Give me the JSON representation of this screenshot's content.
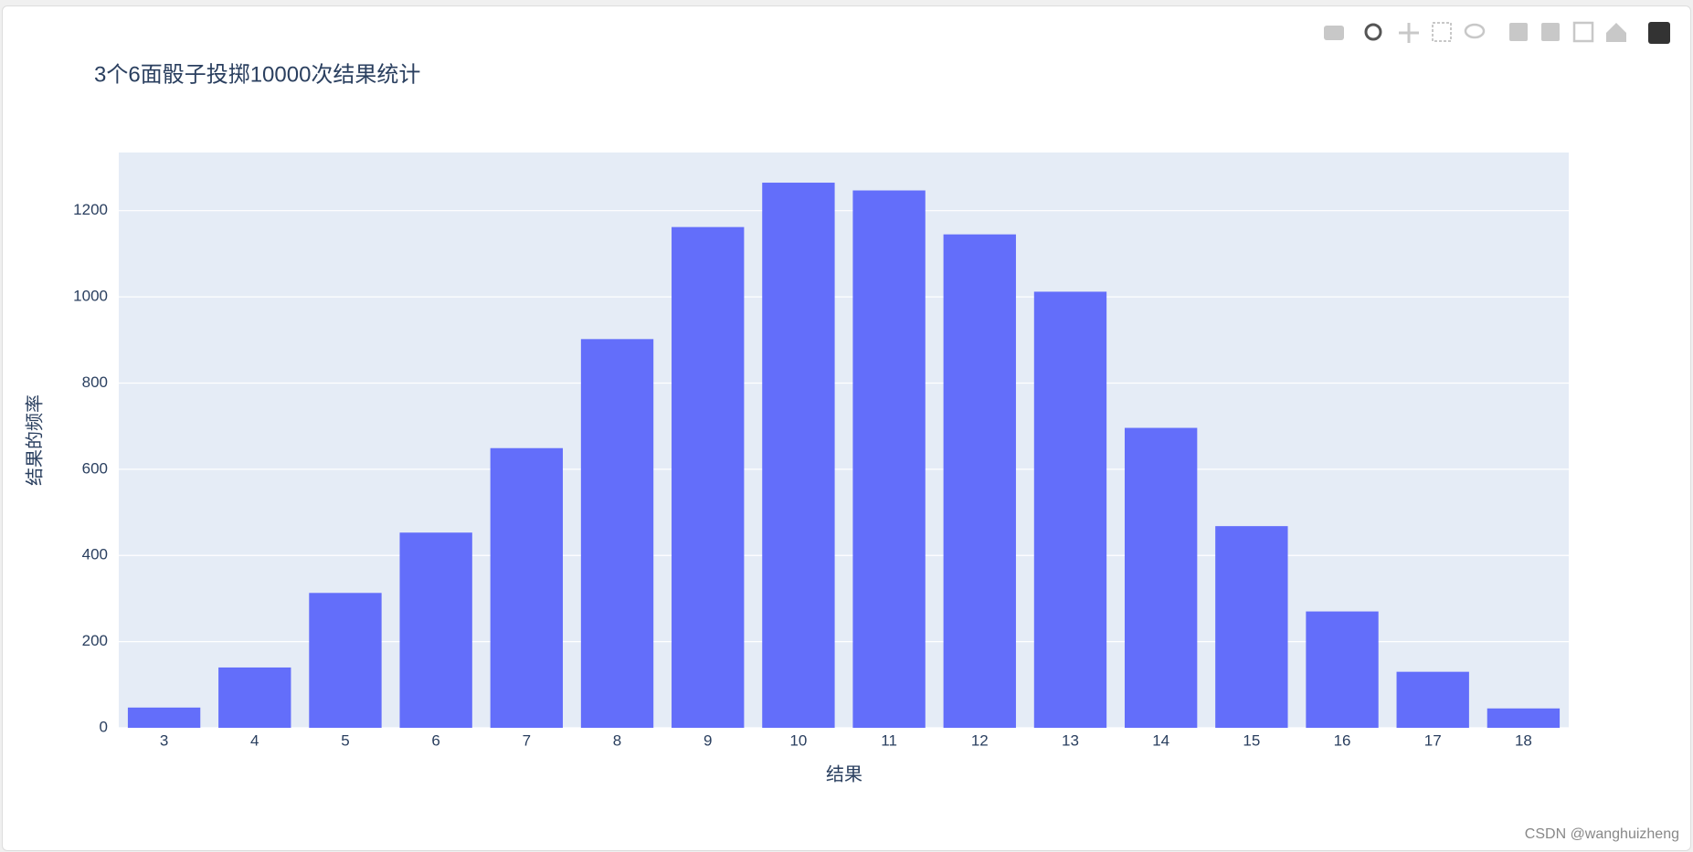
{
  "chart_data": {
    "type": "bar",
    "title": "3个6面骰子投掷10000次结果统计",
    "x_label": "结果",
    "y_label": "结果的频率",
    "categories": [
      "3",
      "4",
      "5",
      "6",
      "7",
      "8",
      "9",
      "10",
      "11",
      "12",
      "13",
      "14",
      "15",
      "16",
      "17",
      "18"
    ],
    "values": [
      47,
      140,
      313,
      453,
      649,
      902,
      1162,
      1265,
      1247,
      1145,
      1012,
      696,
      468,
      270,
      130,
      45
    ],
    "color": "#636efa",
    "ylim": [
      0,
      1335
    ],
    "yticks": [
      0,
      200,
      400,
      600,
      800,
      1000,
      1200
    ],
    "grid": true
  },
  "watermark": "CSDN @wanghuizheng"
}
